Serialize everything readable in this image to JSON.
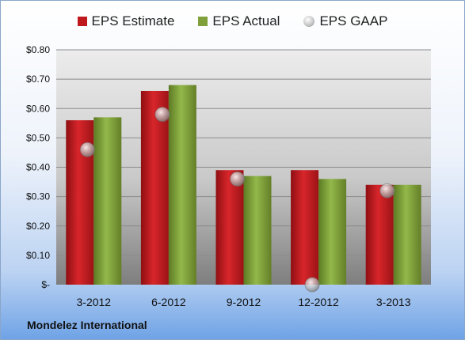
{
  "chart_data": {
    "type": "bar",
    "categories": [
      "3-2012",
      "6-2012",
      "9-2012",
      "12-2012",
      "3-2013"
    ],
    "series": [
      {
        "name": "EPS Estimate",
        "values": [
          0.56,
          0.66,
          0.39,
          0.39,
          0.34
        ]
      },
      {
        "name": "EPS Actual",
        "values": [
          0.57,
          0.68,
          0.37,
          0.36,
          0.34
        ]
      },
      {
        "name": "EPS GAAP",
        "values": [
          0.46,
          0.58,
          0.36,
          0.0,
          0.32
        ]
      }
    ],
    "y_ticks": [
      "$-",
      "$0.10",
      "$0.20",
      "$0.30",
      "$0.40",
      "$0.50",
      "$0.60",
      "$0.70",
      "$0.80"
    ],
    "ylim": [
      0,
      0.8
    ],
    "grid": true,
    "legend_position": "top"
  },
  "company": "Mondelez International",
  "colors": {
    "estimate": "#c0191d",
    "actual": "#7fa03a",
    "gaap": "#b8b8b8"
  }
}
